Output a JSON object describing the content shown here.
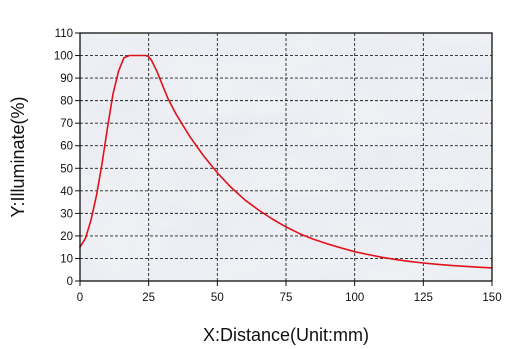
{
  "chart_data": {
    "type": "line",
    "title": "",
    "xlabel": "X:Distance(Unit:mm)",
    "ylabel": "Y:Illuminate(%)",
    "xlim": [
      0,
      150
    ],
    "ylim": [
      0,
      110
    ],
    "x_ticks": [
      0,
      25,
      50,
      75,
      100,
      125,
      150
    ],
    "y_ticks": [
      0,
      10,
      20,
      30,
      40,
      50,
      60,
      70,
      80,
      90,
      100,
      110
    ],
    "grid": true,
    "legend": "none",
    "series": [
      {
        "color": "#e0121b",
        "x": [
          0,
          2,
          4,
          6,
          8,
          10,
          12,
          14,
          16,
          18,
          20,
          22,
          24,
          25,
          26,
          28,
          30,
          32,
          35,
          40,
          45,
          50,
          55,
          60,
          65,
          70,
          75,
          80,
          85,
          90,
          95,
          100,
          105,
          110,
          115,
          120,
          125,
          130,
          135,
          140,
          145,
          150
        ],
        "y": [
          15,
          19,
          27,
          38,
          52,
          68,
          83,
          93,
          99,
          100,
          100,
          100,
          100,
          99.5,
          98,
          93,
          87,
          81,
          74,
          64,
          55.5,
          48,
          41.5,
          36,
          31.5,
          27.5,
          24,
          21,
          18.5,
          16.5,
          14.7,
          13,
          11.7,
          10.5,
          9.5,
          8.7,
          8,
          7.4,
          6.9,
          6.5,
          6.1,
          5.8
        ]
      }
    ]
  }
}
